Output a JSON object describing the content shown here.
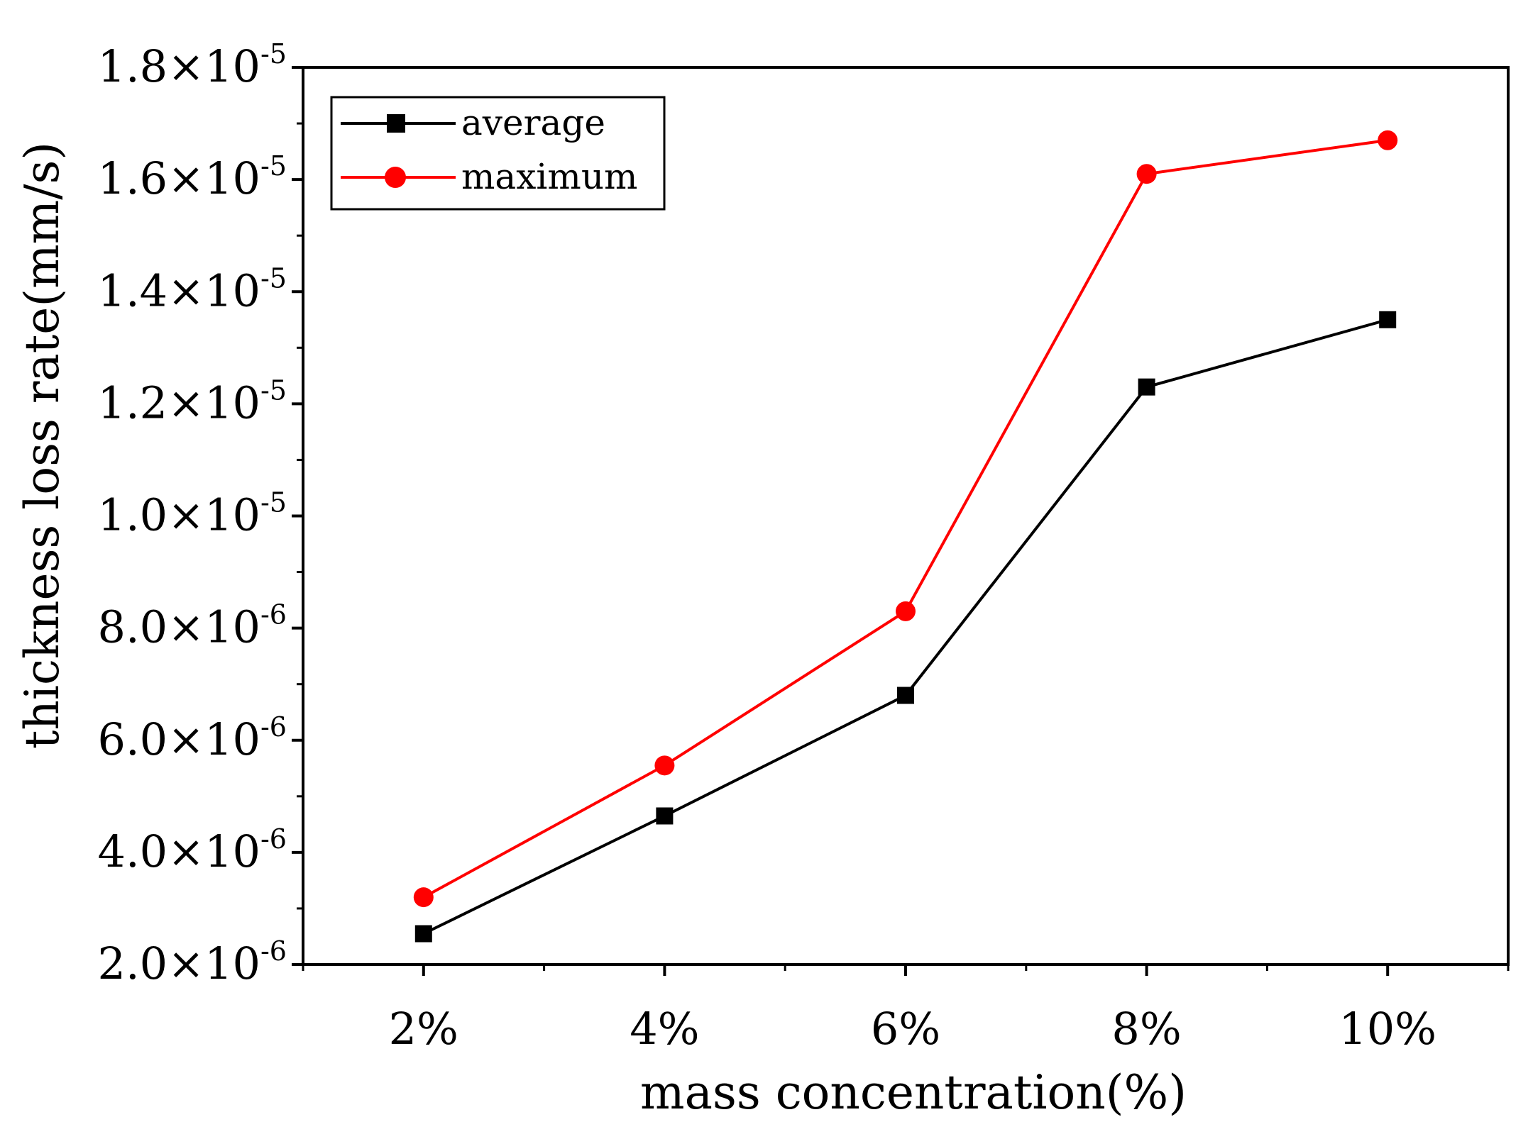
{
  "chart_data": {
    "type": "line",
    "title": "",
    "xlabel": "mass concentration(%)",
    "ylabel": "thickness loss rate(mm/s)",
    "categories": [
      "2%",
      "4%",
      "6%",
      "8%",
      "10%"
    ],
    "x": [
      2,
      4,
      6,
      8,
      10
    ],
    "xlim": [
      1,
      11
    ],
    "ylim": [
      2e-06,
      1.8e-05
    ],
    "y_ticks": [
      {
        "value": 2e-06,
        "mantissa": "2.0×10",
        "exp": "-6"
      },
      {
        "value": 4e-06,
        "mantissa": "4.0×10",
        "exp": "-6"
      },
      {
        "value": 6e-06,
        "mantissa": "6.0×10",
        "exp": "-6"
      },
      {
        "value": 8e-06,
        "mantissa": "8.0×10",
        "exp": "-6"
      },
      {
        "value": 1e-05,
        "mantissa": "1.0×10",
        "exp": "-5"
      },
      {
        "value": 1.2e-05,
        "mantissa": "1.2×10",
        "exp": "-5"
      },
      {
        "value": 1.4e-05,
        "mantissa": "1.4×10",
        "exp": "-5"
      },
      {
        "value": 1.6e-05,
        "mantissa": "1.6×10",
        "exp": "-5"
      },
      {
        "value": 1.8e-05,
        "mantissa": "1.8×10",
        "exp": "-5"
      }
    ],
    "series": [
      {
        "name": "average",
        "color": "#000000",
        "marker": "square",
        "values": [
          2.55e-06,
          4.65e-06,
          6.8e-06,
          1.23e-05,
          1.35e-05
        ]
      },
      {
        "name": "maximum",
        "color": "#ff0000",
        "marker": "circle",
        "values": [
          3.2e-06,
          5.55e-06,
          8.3e-06,
          1.61e-05,
          1.67e-05
        ]
      }
    ],
    "legend": {
      "position": "top-left"
    },
    "grid": false
  }
}
